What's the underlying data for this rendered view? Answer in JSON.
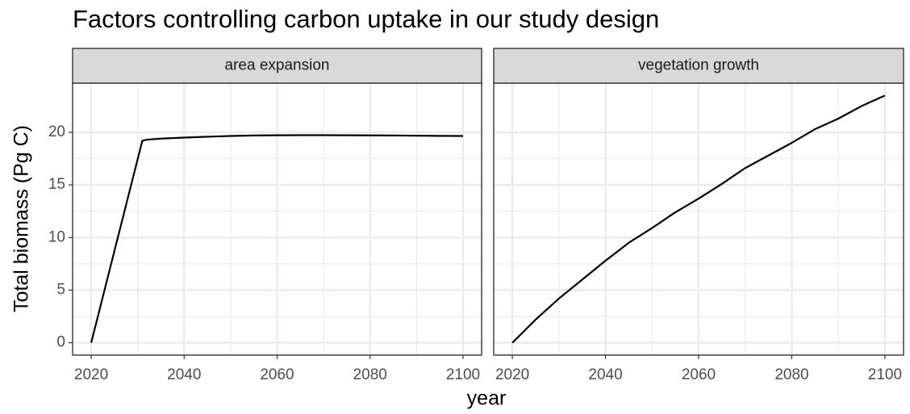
{
  "title": "Factors controlling carbon uptake in our study design",
  "x_label": "year",
  "y_label": "Total biomass (Pg C)",
  "chart_data": [
    {
      "type": "line",
      "title": "area expansion",
      "x": [
        2020,
        2031,
        2032,
        2035,
        2040,
        2045,
        2050,
        2055,
        2060,
        2065,
        2070,
        2075,
        2080,
        2085,
        2090,
        2095,
        2100
      ],
      "series": [
        {
          "color": "#000000",
          "values": [
            0,
            19.2,
            19.3,
            19.4,
            19.5,
            19.58,
            19.65,
            19.7,
            19.72,
            19.73,
            19.73,
            19.72,
            19.71,
            19.7,
            19.68,
            19.66,
            19.65
          ]
        }
      ],
      "xlim": [
        2016,
        2104
      ],
      "ylim": [
        -1.175,
        24.675
      ],
      "xticks": [
        2020,
        2040,
        2060,
        2080,
        2100
      ],
      "yticks": [
        0,
        5,
        10,
        15,
        20
      ],
      "grid": true
    },
    {
      "type": "line",
      "title": "vegetation growth",
      "x": [
        2020,
        2025,
        2030,
        2035,
        2040,
        2045,
        2050,
        2055,
        2060,
        2065,
        2070,
        2075,
        2080,
        2085,
        2090,
        2095,
        2100
      ],
      "series": [
        {
          "color": "#000000",
          "values": [
            0,
            2.2,
            4.2,
            6.0,
            7.8,
            9.5,
            10.9,
            12.4,
            13.7,
            15.1,
            16.6,
            17.8,
            19.0,
            20.3,
            21.3,
            22.5,
            23.5
          ]
        }
      ],
      "xlim": [
        2016,
        2104
      ],
      "ylim": [
        -1.175,
        24.675
      ],
      "xticks": [
        2020,
        2040,
        2060,
        2080,
        2100
      ],
      "yticks": [
        0,
        5,
        10,
        15,
        20
      ],
      "grid": true
    }
  ]
}
